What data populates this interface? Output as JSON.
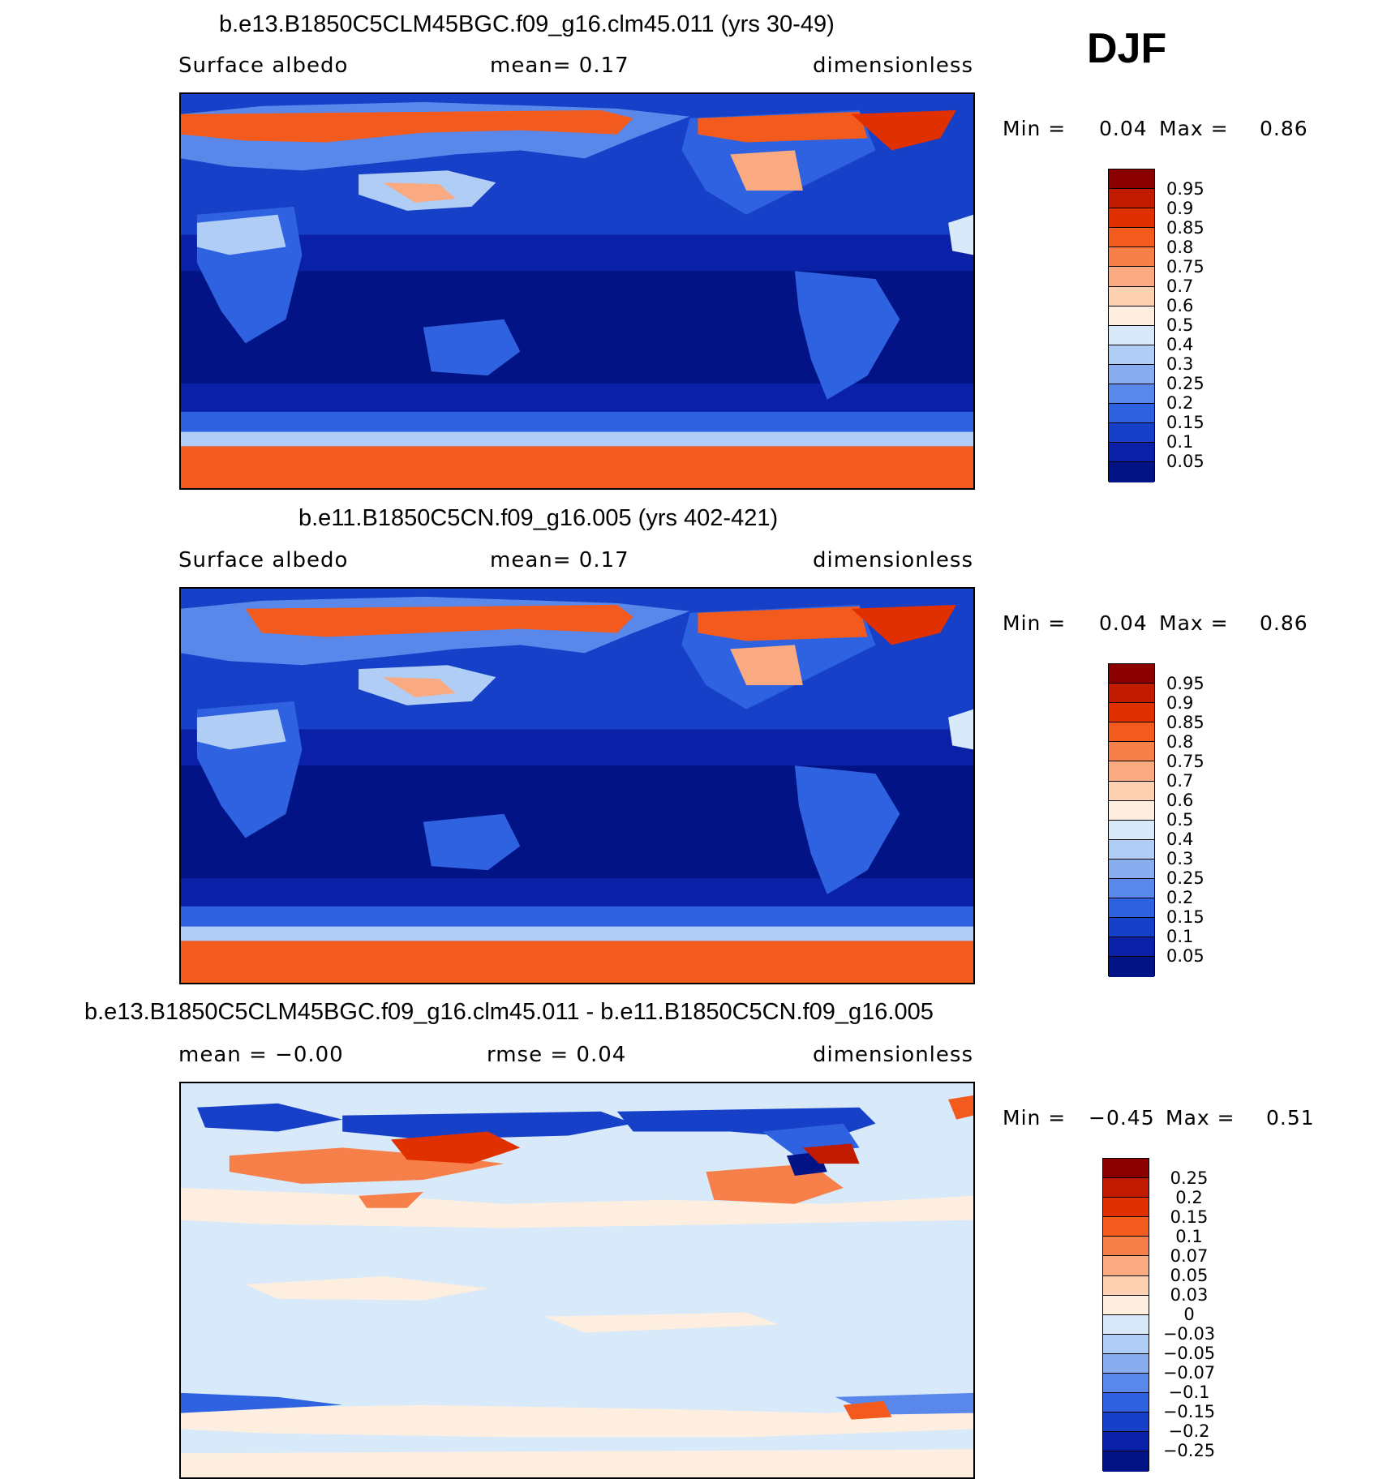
{
  "season": "DJF",
  "panels": [
    {
      "title": "b.e13.B1850C5CLM45BGC.f09_g16.clm45.011 (yrs 30-49)",
      "left_label": "Surface  albedo",
      "mid_label": "mean=    0.17",
      "right_label": "dimensionless",
      "min_label": "Min =",
      "min_value": "0.04",
      "max_label": "Max =",
      "max_value": "0.86",
      "legend_labels": [
        "0.95",
        "0.9",
        "0.85",
        "0.8",
        "0.75",
        "0.7",
        "0.6",
        "0.5",
        "0.4",
        "0.3",
        "0.25",
        "0.2",
        "0.15",
        "0.1",
        "0.05"
      ]
    },
    {
      "title": "b.e11.B1850C5CN.f09_g16.005 (yrs 402-421)",
      "left_label": "Surface  albedo",
      "mid_label": "mean=    0.17",
      "right_label": "dimensionless",
      "min_label": "Min =",
      "min_value": "0.04",
      "max_label": "Max =",
      "max_value": "0.86",
      "legend_labels": [
        "0.95",
        "0.9",
        "0.85",
        "0.8",
        "0.75",
        "0.7",
        "0.6",
        "0.5",
        "0.4",
        "0.3",
        "0.25",
        "0.2",
        "0.15",
        "0.1",
        "0.05"
      ]
    },
    {
      "title": "b.e13.B1850C5CLM45BGC.f09_g16.clm45.011 - b.e11.B1850C5CN.f09_g16.005",
      "left_label": "mean =   −0.00",
      "mid_label": "rmse =    0.04",
      "right_label": "dimensionless",
      "min_label": "Min =",
      "min_value": "−0.45",
      "max_label": "Max =",
      "max_value": "0.51",
      "legend_labels": [
        "0.25",
        "0.2",
        "0.15",
        "0.1",
        "0.07",
        "0.05",
        "0.03",
        "0",
        "−0.03",
        "−0.05",
        "−0.07",
        "−0.1",
        "−0.15",
        "−0.2",
        "−0.25"
      ]
    }
  ],
  "colors": {
    "abs_scale": [
      "#8a0000",
      "#c01a00",
      "#e03000",
      "#f25a1e",
      "#f7804a",
      "#faaa80",
      "#fcd0b0",
      "#fdeee0",
      "#d8eafa",
      "#b0cdf6",
      "#88aef0",
      "#5a88ea",
      "#2f62e0",
      "#1640c8",
      "#0a20a6",
      "#021485"
    ],
    "diff_scale": [
      "#8a0000",
      "#c01a00",
      "#e03000",
      "#f25a1e",
      "#f7804a",
      "#faaa80",
      "#fcd0b0",
      "#fdeee0",
      "#d8eafa",
      "#b0cdf6",
      "#88aef0",
      "#5a88ea",
      "#2f62e0",
      "#1640c8",
      "#0a20a6",
      "#021485"
    ]
  }
}
